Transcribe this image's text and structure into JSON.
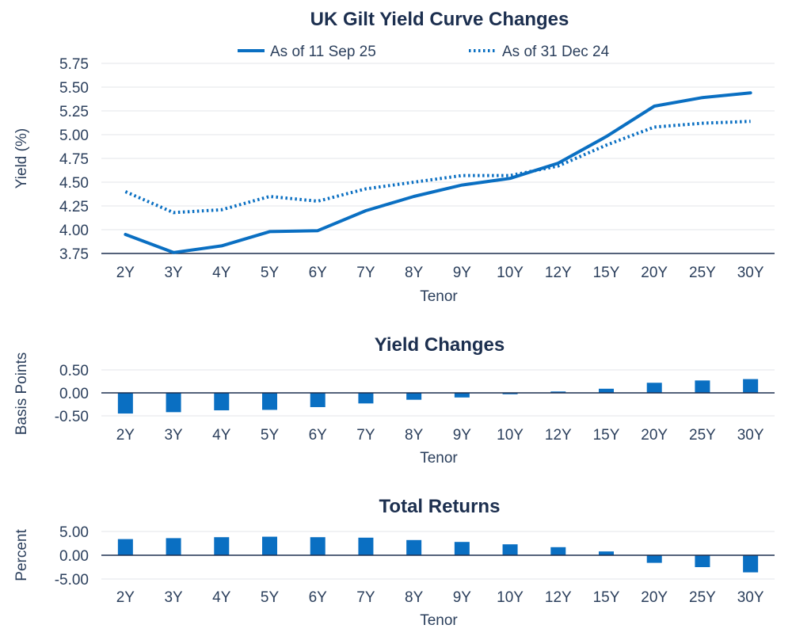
{
  "chart_data": [
    {
      "type": "line",
      "title": "UK Gilt Yield Curve Changes",
      "xlabel": "Tenor",
      "ylabel": "Yield (%)",
      "categories": [
        "2Y",
        "3Y",
        "4Y",
        "5Y",
        "6Y",
        "7Y",
        "8Y",
        "9Y",
        "10Y",
        "12Y",
        "15Y",
        "20Y",
        "25Y",
        "30Y"
      ],
      "ylim": [
        3.75,
        5.75
      ],
      "yticks": [
        "3.75",
        "4.00",
        "4.25",
        "4.50",
        "4.75",
        "5.00",
        "5.25",
        "5.50",
        "5.75"
      ],
      "grid": true,
      "legend_position": "top",
      "series": [
        {
          "name": "As of 11 Sep 25",
          "style": "solid",
          "color": "#0a6fc2",
          "values": [
            3.95,
            3.76,
            3.83,
            3.98,
            3.99,
            4.2,
            4.35,
            4.47,
            4.54,
            4.7,
            4.98,
            5.3,
            5.39,
            5.44
          ]
        },
        {
          "name": "As of 31 Dec 24",
          "style": "dotted",
          "color": "#0a6fc2",
          "values": [
            4.4,
            4.18,
            4.21,
            4.35,
            4.3,
            4.43,
            4.5,
            4.57,
            4.57,
            4.67,
            4.89,
            5.08,
            5.12,
            5.14
          ]
        }
      ]
    },
    {
      "type": "bar",
      "title": "Yield Changes",
      "xlabel": "Tenor",
      "ylabel": "Basis Points",
      "categories": [
        "2Y",
        "3Y",
        "4Y",
        "5Y",
        "6Y",
        "7Y",
        "8Y",
        "9Y",
        "10Y",
        "12Y",
        "15Y",
        "20Y",
        "25Y",
        "30Y"
      ],
      "ylim": [
        -0.5,
        0.5
      ],
      "yticks": [
        "-0.50",
        "0.00",
        "0.50"
      ],
      "grid": true,
      "color": "#0a6fc2",
      "values": [
        -0.45,
        -0.42,
        -0.38,
        -0.37,
        -0.31,
        -0.23,
        -0.15,
        -0.1,
        -0.03,
        0.03,
        0.09,
        0.22,
        0.27,
        0.3
      ]
    },
    {
      "type": "bar",
      "title": "Total Returns",
      "xlabel": "Tenor",
      "ylabel": "Percent",
      "categories": [
        "2Y",
        "3Y",
        "4Y",
        "5Y",
        "6Y",
        "7Y",
        "8Y",
        "9Y",
        "10Y",
        "12Y",
        "15Y",
        "20Y",
        "25Y",
        "30Y"
      ],
      "ylim": [
        -5,
        5
      ],
      "yticks": [
        "-5.00",
        "0.00",
        "5.00"
      ],
      "grid": true,
      "color": "#0a6fc2",
      "values": [
        3.4,
        3.6,
        3.8,
        3.9,
        3.8,
        3.7,
        3.2,
        2.8,
        2.3,
        1.7,
        0.8,
        -1.6,
        -2.5,
        -3.6
      ]
    }
  ]
}
